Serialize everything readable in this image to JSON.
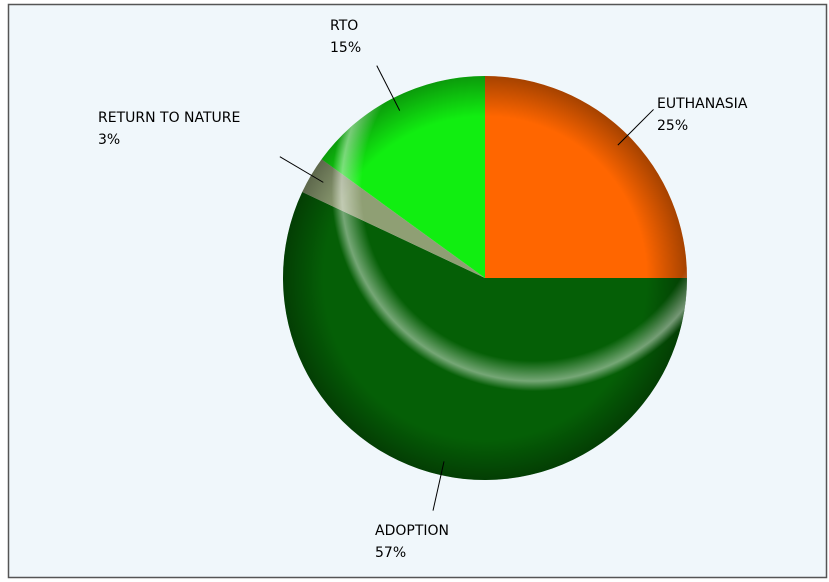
{
  "chart_data": {
    "type": "pie",
    "categories": [
      "EUTHANASIA",
      "ADOPTION",
      "RETURN TO NATURE",
      "RTO"
    ],
    "values": [
      25,
      57,
      3,
      15
    ],
    "value_labels": [
      "25%",
      "57%",
      "3%",
      "15%"
    ],
    "colors": [
      "#ff6600",
      "#055f06",
      "#8f9f74",
      "#11ee11"
    ]
  }
}
